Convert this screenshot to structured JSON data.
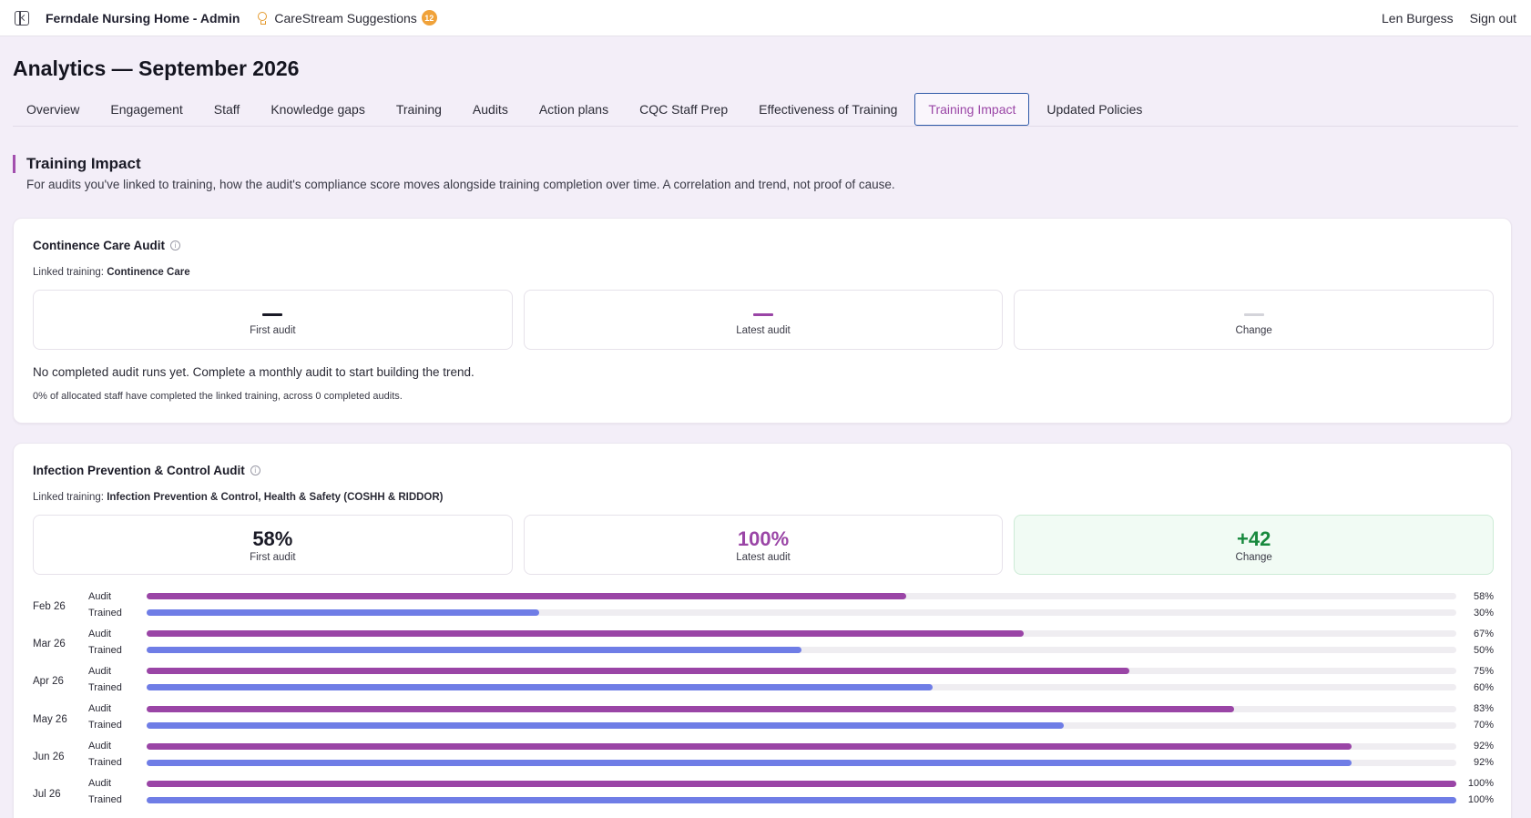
{
  "topbar": {
    "app_title": "Ferndale Nursing Home - Admin",
    "suggestions_label": "CareStream Suggestions",
    "suggestions_count": "12",
    "user_name": "Len Burgess",
    "signout_label": "Sign out"
  },
  "page": {
    "title": "Analytics — September 2026"
  },
  "tabs": [
    {
      "label": "Overview",
      "active": false
    },
    {
      "label": "Engagement",
      "active": false
    },
    {
      "label": "Staff",
      "active": false
    },
    {
      "label": "Knowledge gaps",
      "active": false
    },
    {
      "label": "Training",
      "active": false
    },
    {
      "label": "Audits",
      "active": false
    },
    {
      "label": "Action plans",
      "active": false
    },
    {
      "label": "CQC Staff Prep",
      "active": false
    },
    {
      "label": "Effectiveness of Training",
      "active": false
    },
    {
      "label": "Training Impact",
      "active": true
    },
    {
      "label": "Updated Policies",
      "active": false
    }
  ],
  "section": {
    "title": "Training Impact",
    "description": "For audits you've linked to training, how the audit's compliance score moves alongside training completion over time. A correlation and trend, not proof of cause."
  },
  "cards": [
    {
      "title": "Continence Care Audit",
      "linked_prefix": "Linked training:",
      "linked_training": "Continence Care",
      "stats": [
        {
          "value": "",
          "label": "First audit",
          "dash_color": "#1a1a26"
        },
        {
          "value": "",
          "label": "Latest audit",
          "dash_color": "#9a45a6"
        },
        {
          "value": "",
          "label": "Change",
          "dash_color": "#d4d4da"
        }
      ],
      "empty_message": "No completed audit runs yet. Complete a monthly audit to start building the trend.",
      "note": "0% of allocated staff have completed the linked training, across 0 completed audits."
    },
    {
      "title": "Infection Prevention & Control Audit",
      "linked_prefix": "Linked training:",
      "linked_training": "Infection Prevention & Control, Health & Safety (COSHH & RIDDOR)",
      "stats": [
        {
          "value": "58%",
          "label": "First audit"
        },
        {
          "value": "100%",
          "label": "Latest audit"
        },
        {
          "value": "+42",
          "label": "Change"
        }
      ],
      "audit_label": "Audit",
      "trained_label": "Trained",
      "months": [
        {
          "label": "Feb 26",
          "audit": 58,
          "trained": 30,
          "audit_text": "58%",
          "trained_text": "30%"
        },
        {
          "label": "Mar 26",
          "audit": 67,
          "trained": 50,
          "audit_text": "67%",
          "trained_text": "50%"
        },
        {
          "label": "Apr 26",
          "audit": 75,
          "trained": 60,
          "audit_text": "75%",
          "trained_text": "60%"
        },
        {
          "label": "May 26",
          "audit": 83,
          "trained": 70,
          "audit_text": "83%",
          "trained_text": "70%"
        },
        {
          "label": "Jun 26",
          "audit": 92,
          "trained": 92,
          "audit_text": "92%",
          "trained_text": "92%"
        },
        {
          "label": "Jul 26",
          "audit": 100,
          "trained": 100,
          "audit_text": "100%",
          "trained_text": "100%"
        }
      ]
    }
  ],
  "colors": {
    "accent": "#9a45a6",
    "trained_bar": "#6f7de6",
    "positive": "#17893d",
    "badge": "#f0a23a"
  }
}
